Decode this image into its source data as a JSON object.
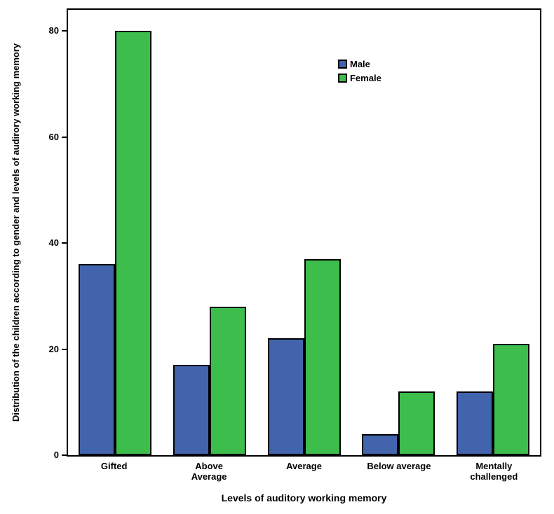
{
  "chart_data": {
    "type": "bar",
    "title": "",
    "categories": [
      "Gifted",
      "Above\nAverage",
      "Average",
      "Below average",
      "Mentally\nchallenged"
    ],
    "series": [
      {
        "name": "Male",
        "color": "#4164ad",
        "values": [
          36,
          17,
          22,
          4,
          12
        ]
      },
      {
        "name": "Female",
        "color": "#3dbd4b",
        "values": [
          80,
          28,
          37,
          12,
          21
        ]
      }
    ],
    "xlabel": "Levels of auditory working memory",
    "ylabel": "Distribution of the children according to gender and levels of audirory working memory",
    "yticks": [
      0,
      20,
      40,
      60,
      80
    ],
    "ylim": [
      0,
      84
    ],
    "grid": false,
    "legend_position": "inside-upper-center",
    "bar_outline_color": "#000000",
    "plot_border_color": "#000000",
    "background_color": "#ffffff"
  }
}
